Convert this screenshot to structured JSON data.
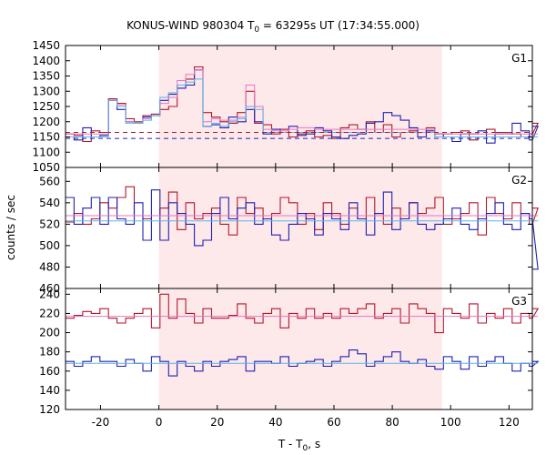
{
  "chart_data": {
    "type": "line",
    "title_main": "KONUS-WIND 980304 T",
    "title_sub": "0",
    "title_rest": " = 63295s UT (17:34:55.000)",
    "xlabel_main": "T - T",
    "xlabel_sub": "0",
    "xlabel_rest": ", s",
    "ylabel": "counts / sec",
    "xlim": [
      -32,
      128
    ],
    "xticks": [
      "-20",
      "0",
      "20",
      "40",
      "60",
      "80",
      "100",
      "120"
    ],
    "xtick_values": [
      -20,
      0,
      20,
      40,
      60,
      80,
      100,
      120
    ],
    "highlight_interval": [
      0,
      97
    ],
    "colors": {
      "series_a": "#b2182b",
      "series_b": "#2020b0",
      "fit_a": "#e377c2",
      "fit_b": "#5ab4e8",
      "band": "#fde8ea"
    },
    "panels": [
      {
        "label": "G1",
        "ylim": [
          1050,
          1450
        ],
        "yticks": [
          "1050",
          "1100",
          "1150",
          "1200",
          "1250",
          "1300",
          "1350",
          "1400",
          "1450"
        ],
        "ytick_values": [
          1050,
          1100,
          1150,
          1200,
          1250,
          1300,
          1350,
          1400,
          1450
        ],
        "bin_width": 2.944,
        "bin_start": -32,
        "series": [
          {
            "color_key": "series_a",
            "values": [
              1160,
              1155,
              1135,
              1170,
              1165,
              1275,
              1260,
              1210,
              1200,
              1220,
              1225,
              1240,
              1250,
              1320,
              1340,
              1380,
              1230,
              1215,
              1200,
              1195,
              1230,
              1300,
              1195,
              1190,
              1160,
              1175,
              1150,
              1160,
              1170,
              1150,
              1155,
              1145,
              1180,
              1190,
              1175,
              1200,
              1165,
              1190,
              1150,
              1165,
              1170,
              1165,
              1180,
              1150,
              1160,
              1165,
              1170,
              1140,
              1150,
              1175,
              1165,
              1165,
              1160,
              1150,
              1160,
              1195
            ]
          },
          {
            "color_key": "series_b",
            "values": [
              1150,
              1140,
              1180,
              1150,
              1155,
              1270,
              1240,
              1200,
              1195,
              1215,
              1220,
              1270,
              1290,
              1310,
              1320,
              1370,
              1185,
              1190,
              1180,
              1215,
              1200,
              1240,
              1200,
              1160,
              1175,
              1165,
              1185,
              1155,
              1160,
              1180,
              1170,
              1150,
              1145,
              1155,
              1160,
              1195,
              1200,
              1230,
              1220,
              1205,
              1180,
              1150,
              1170,
              1160,
              1150,
              1135,
              1160,
              1160,
              1170,
              1130,
              1160,
              1160,
              1195,
              1170,
              1140,
              1185
            ]
          },
          {
            "color_key": "fit_a",
            "values": [
              1160,
              1160,
              1160,
              1160,
              1160,
              1270,
              1255,
              1200,
              1195,
              1210,
              1220,
              1260,
              1280,
              1335,
              1355,
              1370,
              1200,
              1210,
              1205,
              1205,
              1215,
              1320,
              1250,
              1175,
              1170,
              1170,
              1175,
              1180,
              1180,
              1175,
              1175,
              1175,
              1175,
              1175,
              1175,
              1175,
              1175,
              1175,
              1175,
              1175,
              1175,
              1175,
              1175,
              1160,
              1160,
              1160,
              1160,
              1160,
              1160,
              1160,
              1160,
              1160,
              1160,
              1160,
              1160,
              1160
            ]
          },
          {
            "color_key": "fit_b",
            "values": [
              1150,
              1150,
              1150,
              1150,
              1150,
              1270,
              1250,
              1195,
              1195,
              1205,
              1220,
              1280,
              1295,
              1320,
              1330,
              1340,
              1185,
              1195,
              1185,
              1200,
              1210,
              1250,
              1240,
              1165,
              1165,
              1165,
              1165,
              1165,
              1165,
              1165,
              1165,
              1165,
              1165,
              1165,
              1165,
              1165,
              1165,
              1165,
              1165,
              1165,
              1165,
              1165,
              1165,
              1150,
              1150,
              1150,
              1150,
              1150,
              1150,
              1150,
              1150,
              1150,
              1150,
              1150,
              1150,
              1150
            ]
          }
        ],
        "bg_levels": [
          {
            "color_key": "series_a",
            "value": 1165,
            "dashed": true
          },
          {
            "color_key": "series_b",
            "value": 1145,
            "dashed": true
          }
        ]
      },
      {
        "label": "G2",
        "ylim": [
          460,
          573
        ],
        "yticks": [
          "460",
          "480",
          "500",
          "520",
          "540",
          "560"
        ],
        "ytick_values": [
          460,
          480,
          500,
          520,
          540,
          560
        ],
        "bin_width": 2.944,
        "bin_start": -32,
        "series": [
          {
            "color_key": "series_a",
            "values": [
              522,
              530,
              520,
              525,
              540,
              535,
              545,
              555,
              528,
              525,
              528,
              535,
              550,
              515,
              540,
              525,
              530,
              535,
              520,
              510,
              545,
              530,
              535,
              525,
              530,
              545,
              540,
              520,
              530,
              515,
              540,
              530,
              520,
              535,
              525,
              545,
              530,
              520,
              535,
              525,
              540,
              530,
              535,
              545,
              520,
              525,
              530,
              540,
              510,
              545,
              530,
              525,
              540,
              530,
              520,
              535
            ]
          },
          {
            "color_key": "series_b",
            "values": [
              545,
              520,
              535,
              545,
              520,
              545,
              525,
              520,
              540,
              505,
              552,
              505,
              540,
              530,
              520,
              500,
              505,
              530,
              545,
              525,
              535,
              540,
              520,
              525,
              510,
              505,
              520,
              530,
              525,
              510,
              530,
              525,
              515,
              540,
              525,
              510,
              530,
              550,
              515,
              525,
              540,
              520,
              515,
              520,
              525,
              535,
              520,
              515,
              525,
              530,
              540,
              520,
              515,
              530,
              525,
              478
            ]
          },
          {
            "color_key": "fit_a",
            "values": [
              528,
              528,
              528,
              528,
              528,
              528,
              528,
              528,
              528,
              528,
              528,
              528,
              528,
              528,
              528,
              528,
              528,
              528,
              528,
              528,
              528,
              528,
              528,
              528,
              528,
              528,
              528,
              528,
              528,
              528,
              528,
              528,
              528,
              528,
              528,
              528,
              528,
              528,
              528,
              528,
              528,
              528,
              528,
              528,
              528,
              528,
              528,
              528,
              528,
              528,
              528,
              528,
              528,
              528,
              528,
              528
            ]
          },
          {
            "color_key": "fit_b",
            "values": [
              523,
              523,
              523,
              523,
              523,
              523,
              523,
              523,
              523,
              523,
              523,
              523,
              523,
              523,
              523,
              523,
              523,
              523,
              523,
              523,
              523,
              523,
              523,
              523,
              523,
              523,
              523,
              523,
              523,
              523,
              523,
              523,
              523,
              523,
              523,
              523,
              523,
              523,
              523,
              523,
              523,
              523,
              523,
              523,
              523,
              523,
              523,
              523,
              523,
              523,
              523,
              523,
              523,
              523,
              523,
              523
            ]
          }
        ],
        "bg_levels": []
      },
      {
        "label": "G3",
        "ylim": [
          120,
          246
        ],
        "yticks": [
          "120",
          "140",
          "160",
          "180",
          "200",
          "220",
          "240"
        ],
        "ytick_values": [
          120,
          140,
          160,
          180,
          200,
          220,
          240
        ],
        "bin_width": 2.944,
        "bin_start": -32,
        "series": [
          {
            "color_key": "series_a",
            "values": [
              215,
              218,
              222,
              220,
              225,
              215,
              210,
              215,
              220,
              225,
              205,
              240,
              215,
              235,
              220,
              210,
              225,
              215,
              215,
              218,
              230,
              215,
              210,
              220,
              225,
              205,
              220,
              215,
              225,
              215,
              220,
              215,
              225,
              220,
              225,
              230,
              215,
              220,
              225,
              210,
              230,
              225,
              220,
              200,
              225,
              220,
              215,
              230,
              210,
              220,
              215,
              225,
              210,
              220,
              215,
              225
            ]
          },
          {
            "color_key": "series_b",
            "values": [
              170,
              165,
              170,
              175,
              170,
              170,
              165,
              172,
              168,
              160,
              175,
              170,
              155,
              170,
              165,
              160,
              170,
              165,
              170,
              172,
              175,
              160,
              170,
              170,
              168,
              175,
              165,
              168,
              170,
              172,
              165,
              170,
              175,
              182,
              178,
              165,
              170,
              175,
              180,
              170,
              168,
              172,
              165,
              162,
              175,
              170,
              162,
              175,
              165,
              170,
              175,
              168,
              160,
              168,
              165,
              170
            ]
          },
          {
            "color_key": "fit_a",
            "values": [
              217,
              217,
              217,
              217,
              217,
              217,
              217,
              217,
              217,
              217,
              217,
              217,
              217,
              217,
              217,
              217,
              217,
              217,
              217,
              217,
              217,
              217,
              217,
              217,
              217,
              217,
              217,
              217,
              217,
              217,
              217,
              217,
              217,
              217,
              217,
              217,
              217,
              217,
              217,
              217,
              217,
              217,
              217,
              217,
              217,
              217,
              217,
              217,
              217,
              217,
              217,
              217,
              217,
              217,
              217,
              217
            ]
          },
          {
            "color_key": "fit_b",
            "values": [
              168,
              168,
              168,
              168,
              168,
              168,
              168,
              168,
              168,
              168,
              168,
              168,
              168,
              168,
              168,
              168,
              168,
              168,
              168,
              168,
              168,
              168,
              168,
              168,
              168,
              168,
              168,
              168,
              168,
              168,
              168,
              168,
              168,
              168,
              168,
              168,
              168,
              168,
              168,
              168,
              168,
              168,
              168,
              168,
              168,
              168,
              168,
              168,
              168,
              168,
              168,
              168,
              168,
              168,
              168,
              168
            ]
          }
        ],
        "bg_levels": []
      }
    ]
  }
}
